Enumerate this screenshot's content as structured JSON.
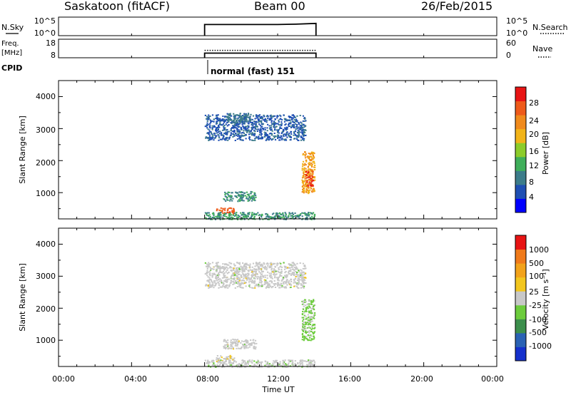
{
  "header": {
    "station": "Saskatoon (fitACF)",
    "beam": "Beam 00",
    "date": "26/Feb/2015"
  },
  "nsky_panel": {
    "label": "N.Sky",
    "left_ticks": [
      "10^5",
      "10^0"
    ],
    "right_ticks": [
      "10^5",
      "10^0"
    ],
    "right_label": "N.Search"
  },
  "freq_panel": {
    "label_line1": "Freq.",
    "label_line2": "[MHz]",
    "left_ticks": [
      "18",
      "8"
    ],
    "right_ticks": [
      "60",
      "0"
    ],
    "right_label": "Nave"
  },
  "cpid": {
    "label": "CPID",
    "value": "normal (fast) 151"
  },
  "power_panel": {
    "ylabel": "Slant Range [km]",
    "yticks": [
      "4000",
      "3000",
      "2000",
      "1000"
    ],
    "colorbar_label": "Power [dB]",
    "colorbar_ticks": [
      "28",
      "24",
      "20",
      "16",
      "12",
      "8",
      "4"
    ],
    "colors": [
      "#0000ff",
      "#1f4fb3",
      "#3c7c8a",
      "#3fae5a",
      "#8ccc2a",
      "#f2b419",
      "#f08a1c",
      "#ee5a1a",
      "#e81414"
    ]
  },
  "velocity_panel": {
    "ylabel": "Slant Range [km]",
    "yticks": [
      "4000",
      "3000",
      "2000",
      "1000"
    ],
    "colorbar_label": "Velocity [m s⁻¹]",
    "colorbar_ticks": [
      "1000",
      "500",
      "100",
      "25",
      "-25",
      "-100",
      "-500",
      "-1000"
    ],
    "colors": [
      "#1530cc",
      "#2a62b4",
      "#3c8f4c",
      "#6ccc3c",
      "#c8c8c8",
      "#f2c61e",
      "#f2a21a",
      "#f07a1a",
      "#e81414"
    ]
  },
  "xaxis": {
    "label": "Time UT",
    "ticks": [
      "00:00",
      "04:00",
      "08:00",
      "12:00",
      "16:00",
      "20:00",
      "00:00"
    ]
  },
  "chart_data": [
    {
      "type": "line",
      "title": "N.Sky / N.Search",
      "x_range_hours": [
        0,
        24
      ],
      "data_interval_hours": [
        8.0,
        14.1
      ],
      "series": [
        {
          "name": "N.Sky",
          "x": [
            8.0,
            9.0,
            10.0,
            11.0,
            12.0,
            13.0,
            14.1
          ],
          "y_log10": [
            3.0,
            3.0,
            3.0,
            3.0,
            3.0,
            3.1,
            3.3
          ]
        }
      ]
    },
    {
      "type": "line",
      "title": "Freq. / Nave",
      "x_range_hours": [
        0,
        24
      ],
      "ylim_left": [
        8,
        18
      ],
      "ylim_right": [
        0,
        60
      ],
      "series": [
        {
          "name": "Freq.",
          "x": [
            8.0,
            14.1
          ],
          "y": [
            10.5,
            10.5
          ]
        },
        {
          "name": "Nave",
          "x": [
            8.0,
            14.1
          ],
          "y": [
            24,
            24
          ]
        }
      ]
    },
    {
      "type": "heatmap",
      "title": "Power [dB]",
      "x_range_hours": [
        0,
        24
      ],
      "ylim_km": [
        180,
        4500
      ],
      "clim": [
        0,
        30
      ],
      "regions": [
        {
          "t": [
            8.0,
            13.5
          ],
          "range_km": [
            2650,
            3450
          ],
          "value": 6
        },
        {
          "t": [
            9.2,
            10.5
          ],
          "range_km": [
            3200,
            3500
          ],
          "value": 8
        },
        {
          "t": [
            13.3,
            14.0
          ],
          "range_km": [
            1000,
            2300
          ],
          "value": 20
        },
        {
          "t": [
            13.5,
            13.9
          ],
          "range_km": [
            1200,
            1700
          ],
          "value": 26
        },
        {
          "t": [
            8.6,
            9.6
          ],
          "range_km": [
            350,
            550
          ],
          "value": 25
        },
        {
          "t": [
            8.0,
            14.0
          ],
          "range_km": [
            180,
            400
          ],
          "value": 10
        },
        {
          "t": [
            9.0,
            10.8
          ],
          "range_km": [
            750,
            1050
          ],
          "value": 10
        }
      ]
    },
    {
      "type": "heatmap",
      "title": "Velocity [m s-1]",
      "x_range_hours": [
        0,
        24
      ],
      "ylim_km": [
        180,
        4500
      ],
      "clim": [
        -1000,
        1000
      ],
      "regions": [
        {
          "t": [
            8.0,
            13.5
          ],
          "range_km": [
            2650,
            3450
          ],
          "value": 0
        },
        {
          "t": [
            13.3,
            14.0
          ],
          "range_km": [
            1000,
            2300
          ],
          "value": -150
        },
        {
          "t": [
            8.6,
            9.6
          ],
          "range_km": [
            350,
            550
          ],
          "value": 80
        },
        {
          "t": [
            8.0,
            14.0
          ],
          "range_km": [
            180,
            400
          ],
          "value": -30
        },
        {
          "t": [
            9.0,
            10.8
          ],
          "range_km": [
            750,
            1050
          ],
          "value": 0
        }
      ]
    }
  ]
}
